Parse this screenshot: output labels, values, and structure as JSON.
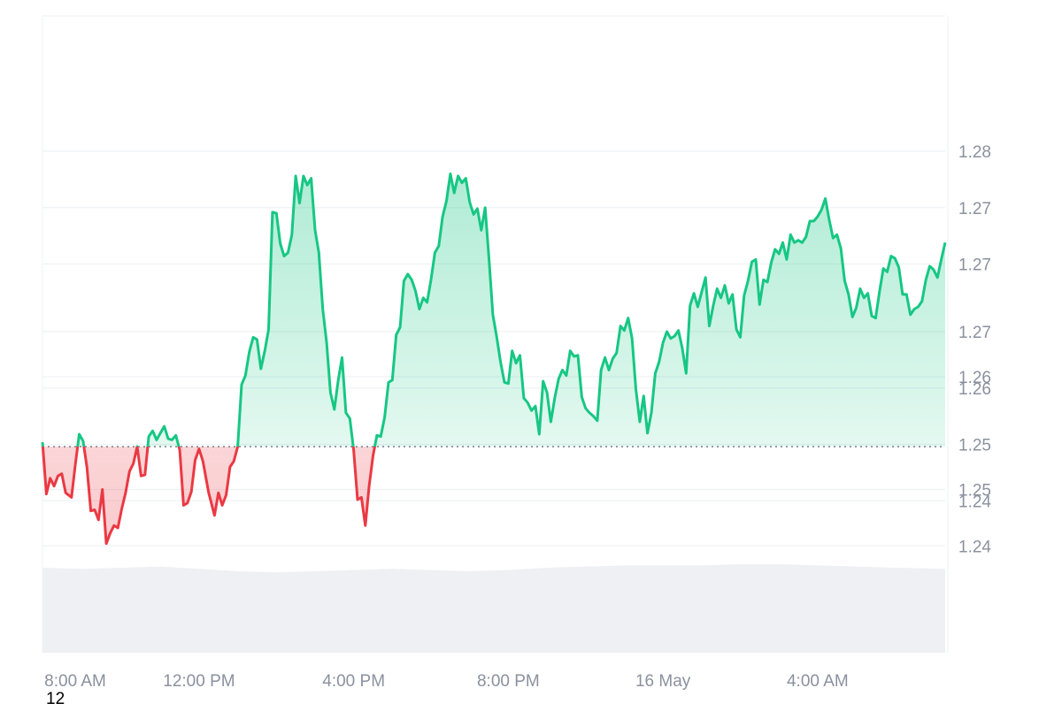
{
  "chart_data": {
    "type": "area",
    "baseline": 1.2493,
    "colors": {
      "above": "#16c784",
      "below": "#ea3943",
      "grid": "#eff2f5",
      "volume": "#eef0f3"
    },
    "y_axis": {
      "ylim": [
        1.2395,
        1.2875
      ],
      "tick_values": [
        1.2405,
        1.2445,
        1.2455,
        1.2495,
        1.2545,
        1.2555,
        1.2595,
        1.2655,
        1.2705,
        1.2755
      ],
      "tick_labels": [
        "1.24",
        "1.24",
        "1.25",
        "1.25",
        "1.26",
        "1.26",
        "1.27",
        "1.27",
        "1.27",
        "1.28"
      ]
    },
    "x_axis": {
      "tick_labels": [
        "8:00 AM",
        "12:00 PM",
        "4:00 PM",
        "8:00 PM",
        "16 May",
        "4:00 AM"
      ],
      "tick_hours": [
        8,
        12,
        16,
        20,
        24,
        28
      ],
      "xlim_hours": [
        7.95,
        31.3
      ]
    },
    "series": [
      {
        "values": [
          [
            7.95,
            1.2497
          ],
          [
            8.05,
            1.2451
          ],
          [
            8.15,
            1.2465
          ],
          [
            8.25,
            1.2458
          ],
          [
            8.35,
            1.2467
          ],
          [
            8.45,
            1.2469
          ],
          [
            8.55,
            1.2452
          ],
          [
            8.7,
            1.2448
          ],
          [
            8.8,
            1.2477
          ],
          [
            8.9,
            1.2504
          ],
          [
            9.0,
            1.2498
          ],
          [
            9.1,
            1.2475
          ],
          [
            9.2,
            1.2436
          ],
          [
            9.3,
            1.2437
          ],
          [
            9.4,
            1.2428
          ],
          [
            9.5,
            1.2455
          ],
          [
            9.6,
            1.2407
          ],
          [
            9.7,
            1.2416
          ],
          [
            9.8,
            1.2423
          ],
          [
            9.9,
            1.2421
          ],
          [
            10.0,
            1.2438
          ],
          [
            10.1,
            1.2452
          ],
          [
            10.2,
            1.2471
          ],
          [
            10.3,
            1.2478
          ],
          [
            10.4,
            1.2493
          ],
          [
            10.5,
            1.2467
          ],
          [
            10.6,
            1.2468
          ],
          [
            10.7,
            1.2502
          ],
          [
            10.8,
            1.2507
          ],
          [
            10.9,
            1.2499
          ],
          [
            11.0,
            1.2505
          ],
          [
            11.1,
            1.2511
          ],
          [
            11.2,
            1.25
          ],
          [
            11.3,
            1.2499
          ],
          [
            11.4,
            1.2503
          ],
          [
            11.5,
            1.249
          ],
          [
            11.6,
            1.2441
          ],
          [
            11.7,
            1.2443
          ],
          [
            11.8,
            1.2453
          ],
          [
            11.9,
            1.2481
          ],
          [
            12.0,
            1.2491
          ],
          [
            12.1,
            1.248
          ],
          [
            12.25,
            1.2452
          ],
          [
            12.4,
            1.2432
          ],
          [
            12.5,
            1.2452
          ],
          [
            12.6,
            1.2441
          ],
          [
            12.7,
            1.245
          ],
          [
            12.8,
            1.2475
          ],
          [
            12.9,
            1.248
          ],
          [
            13.0,
            1.2493
          ],
          [
            13.1,
            1.2548
          ],
          [
            13.2,
            1.2556
          ],
          [
            13.3,
            1.2577
          ],
          [
            13.4,
            1.259
          ],
          [
            13.5,
            1.2588
          ],
          [
            13.6,
            1.2562
          ],
          [
            13.7,
            1.2578
          ],
          [
            13.8,
            1.2597
          ],
          [
            13.9,
            1.2701
          ],
          [
            14.0,
            1.27
          ],
          [
            14.1,
            1.2673
          ],
          [
            14.2,
            1.2662
          ],
          [
            14.3,
            1.2665
          ],
          [
            14.4,
            1.2681
          ],
          [
            14.5,
            1.2733
          ],
          [
            14.6,
            1.2709
          ],
          [
            14.7,
            1.2733
          ],
          [
            14.8,
            1.2725
          ],
          [
            14.9,
            1.2731
          ],
          [
            15.0,
            1.2685
          ],
          [
            15.1,
            1.2665
          ],
          [
            15.2,
            1.2615
          ],
          [
            15.3,
            1.2585
          ],
          [
            15.4,
            1.2541
          ],
          [
            15.5,
            1.2526
          ],
          [
            15.6,
            1.2552
          ],
          [
            15.7,
            1.2572
          ],
          [
            15.8,
            1.2523
          ],
          [
            15.9,
            1.2518
          ],
          [
            16.0,
            1.249
          ],
          [
            16.1,
            1.2446
          ],
          [
            16.2,
            1.2448
          ],
          [
            16.3,
            1.2423
          ],
          [
            16.4,
            1.2458
          ],
          [
            16.5,
            1.2485
          ],
          [
            16.6,
            1.2503
          ],
          [
            16.7,
            1.2502
          ],
          [
            16.8,
            1.2519
          ],
          [
            16.9,
            1.255
          ],
          [
            17.0,
            1.2552
          ],
          [
            17.1,
            1.2592
          ],
          [
            17.2,
            1.2599
          ],
          [
            17.3,
            1.264
          ],
          [
            17.4,
            1.2646
          ],
          [
            17.5,
            1.2641
          ],
          [
            17.6,
            1.2631
          ],
          [
            17.7,
            1.2615
          ],
          [
            17.8,
            1.2625
          ],
          [
            17.9,
            1.2621
          ],
          [
            18.0,
            1.2641
          ],
          [
            18.1,
            1.2665
          ],
          [
            18.2,
            1.2671
          ],
          [
            18.3,
            1.2697
          ],
          [
            18.4,
            1.2711
          ],
          [
            18.5,
            1.2735
          ],
          [
            18.6,
            1.2718
          ],
          [
            18.7,
            1.2733
          ],
          [
            18.8,
            1.2727
          ],
          [
            18.9,
            1.2731
          ],
          [
            19.0,
            1.271
          ],
          [
            19.1,
            1.2699
          ],
          [
            19.2,
            1.2704
          ],
          [
            19.3,
            1.2685
          ],
          [
            19.4,
            1.2705
          ],
          [
            19.5,
            1.266
          ],
          [
            19.6,
            1.261
          ],
          [
            19.7,
            1.259
          ],
          [
            19.8,
            1.2568
          ],
          [
            19.9,
            1.255
          ],
          [
            20.0,
            1.2549
          ],
          [
            20.1,
            1.2578
          ],
          [
            20.2,
            1.2567
          ],
          [
            20.3,
            1.2574
          ],
          [
            20.4,
            1.2536
          ],
          [
            20.5,
            1.2532
          ],
          [
            20.6,
            1.2525
          ],
          [
            20.7,
            1.2529
          ],
          [
            20.8,
            1.2504
          ],
          [
            20.9,
            1.2551
          ],
          [
            21.0,
            1.2541
          ],
          [
            21.1,
            1.2515
          ],
          [
            21.2,
            1.2536
          ],
          [
            21.3,
            1.2553
          ],
          [
            21.4,
            1.2561
          ],
          [
            21.5,
            1.2556
          ],
          [
            21.6,
            1.2578
          ],
          [
            21.7,
            1.2573
          ],
          [
            21.8,
            1.2574
          ],
          [
            21.9,
            1.2537
          ],
          [
            22.0,
            1.2527
          ],
          [
            22.1,
            1.2523
          ],
          [
            22.2,
            1.252
          ],
          [
            22.3,
            1.2516
          ],
          [
            22.4,
            1.2561
          ],
          [
            22.5,
            1.2572
          ],
          [
            22.6,
            1.2561
          ],
          [
            22.7,
            1.2571
          ],
          [
            22.8,
            1.2576
          ],
          [
            22.9,
            1.26
          ],
          [
            23.0,
            1.2596
          ],
          [
            23.1,
            1.2607
          ],
          [
            23.2,
            1.2589
          ],
          [
            23.3,
            1.2544
          ],
          [
            23.4,
            1.2515
          ],
          [
            23.5,
            1.2538
          ],
          [
            23.6,
            1.2505
          ],
          [
            23.7,
            1.2523
          ],
          [
            23.8,
            1.2558
          ],
          [
            23.9,
            1.2568
          ],
          [
            24.0,
            1.2585
          ],
          [
            24.1,
            1.2595
          ],
          [
            24.2,
            1.2589
          ],
          [
            24.3,
            1.2591
          ],
          [
            24.4,
            1.2596
          ],
          [
            24.5,
            1.258
          ],
          [
            24.6,
            1.2558
          ],
          [
            24.7,
            1.2618
          ],
          [
            24.8,
            1.2629
          ],
          [
            24.9,
            1.2617
          ],
          [
            25.0,
            1.263
          ],
          [
            25.1,
            1.2643
          ],
          [
            25.2,
            1.26
          ],
          [
            25.3,
            1.2618
          ],
          [
            25.4,
            1.2633
          ],
          [
            25.5,
            1.2625
          ],
          [
            25.6,
            1.2636
          ],
          [
            25.7,
            1.262
          ],
          [
            25.8,
            1.2628
          ],
          [
            25.9,
            1.2597
          ],
          [
            26.0,
            1.259
          ],
          [
            26.1,
            1.2627
          ],
          [
            26.2,
            1.264
          ],
          [
            26.3,
            1.2657
          ],
          [
            26.4,
            1.2659
          ],
          [
            26.5,
            1.2619
          ],
          [
            26.6,
            1.2641
          ],
          [
            26.7,
            1.2639
          ],
          [
            26.8,
            1.2656
          ],
          [
            26.9,
            1.2668
          ],
          [
            27.0,
            1.2664
          ],
          [
            27.1,
            1.2674
          ],
          [
            27.2,
            1.2659
          ],
          [
            27.3,
            1.2681
          ],
          [
            27.4,
            1.2674
          ],
          [
            27.5,
            1.2676
          ],
          [
            27.6,
            1.2674
          ],
          [
            27.7,
            1.2679
          ],
          [
            27.8,
            1.2693
          ],
          [
            27.9,
            1.2693
          ],
          [
            28.0,
            1.2697
          ],
          [
            28.1,
            1.2703
          ],
          [
            28.2,
            1.2713
          ],
          [
            28.3,
            1.2694
          ],
          [
            28.4,
            1.2678
          ],
          [
            28.5,
            1.2681
          ],
          [
            28.6,
            1.2669
          ],
          [
            28.7,
            1.264
          ],
          [
            28.8,
            1.2628
          ],
          [
            28.9,
            1.2608
          ],
          [
            29.0,
            1.2616
          ],
          [
            29.1,
            1.2633
          ],
          [
            29.2,
            1.2625
          ],
          [
            29.3,
            1.2629
          ],
          [
            29.4,
            1.2609
          ],
          [
            29.5,
            1.2607
          ],
          [
            29.6,
            1.263
          ],
          [
            29.7,
            1.2651
          ],
          [
            29.8,
            1.2648
          ],
          [
            29.9,
            1.2662
          ],
          [
            30.0,
            1.266
          ],
          [
            30.1,
            1.2652
          ],
          [
            30.2,
            1.2628
          ],
          [
            30.3,
            1.2628
          ],
          [
            30.4,
            1.261
          ],
          [
            30.5,
            1.2615
          ],
          [
            30.6,
            1.2617
          ],
          [
            30.7,
            1.2622
          ],
          [
            30.8,
            1.2641
          ],
          [
            30.9,
            1.2653
          ],
          [
            31.0,
            1.265
          ],
          [
            31.1,
            1.2643
          ],
          [
            31.2,
            1.2659
          ],
          [
            31.3,
            1.2674
          ]
        ]
      }
    ],
    "volume": {
      "ylim": [
        0,
        1
      ],
      "x_hours": [
        7.95,
        9,
        10,
        11,
        12,
        13,
        14,
        15,
        16,
        17,
        18,
        19,
        20,
        21,
        22,
        23,
        24,
        25,
        26,
        27,
        28,
        29,
        30,
        31.3
      ],
      "values": [
        0.73,
        0.72,
        0.73,
        0.74,
        0.72,
        0.7,
        0.69,
        0.7,
        0.71,
        0.72,
        0.71,
        0.7,
        0.71,
        0.73,
        0.74,
        0.75,
        0.75,
        0.75,
        0.76,
        0.76,
        0.75,
        0.74,
        0.73,
        0.72
      ]
    }
  },
  "footer": {
    "corner_label": "12"
  }
}
